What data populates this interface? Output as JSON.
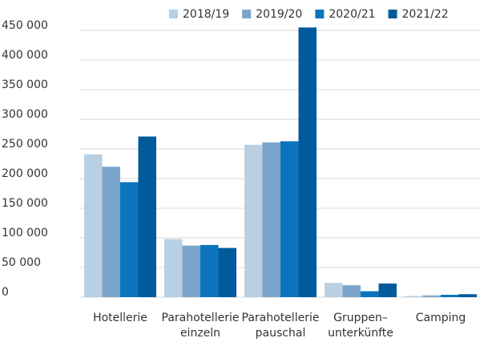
{
  "chart_data": {
    "type": "bar",
    "categories": [
      "Hotellerie",
      "Parahotellerie\neinzeln",
      "Parahotellerie\npauschal",
      "Gruppen–\nunterkünfte",
      "Camping"
    ],
    "series": [
      {
        "name": "2018/19",
        "color": "#b9d0e2",
        "values": [
          241000,
          98000,
          257000,
          24000,
          2000
        ]
      },
      {
        "name": "2019/20",
        "color": "#7ba4cc",
        "values": [
          220000,
          87000,
          261000,
          20000,
          3000
        ]
      },
      {
        "name": "2020/21",
        "color": "#0a75bd",
        "values": [
          194000,
          88000,
          263000,
          10000,
          4000
        ]
      },
      {
        "name": "2021/22",
        "color": "#005a9b",
        "values": [
          271000,
          83000,
          455000,
          23000,
          5000
        ]
      }
    ],
    "ylim": [
      0,
      460000
    ],
    "yticks": [
      0,
      {
        "value": 50000,
        "label": "50 000"
      },
      {
        "value": 100000,
        "label": "100 000"
      },
      {
        "value": 150000,
        "label": "150 000"
      },
      {
        "value": 200000,
        "label": "200 000"
      },
      {
        "value": 250000,
        "label": "250 000"
      },
      {
        "value": 300000,
        "label": "300 000"
      },
      {
        "value": 350000,
        "label": "350 000"
      },
      {
        "value": 400000,
        "label": "400 000"
      },
      {
        "value": 450000,
        "label": "450 000"
      }
    ],
    "grid": true,
    "legend": "top-right"
  }
}
